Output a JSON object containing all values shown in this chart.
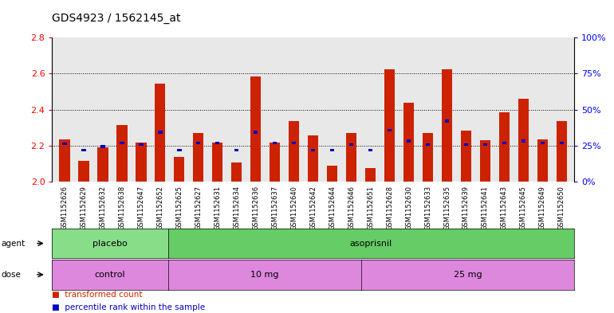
{
  "title": "GDS4923 / 1562145_at",
  "samples": [
    "GSM1152626",
    "GSM1152629",
    "GSM1152632",
    "GSM1152638",
    "GSM1152647",
    "GSM1152652",
    "GSM1152625",
    "GSM1152627",
    "GSM1152631",
    "GSM1152634",
    "GSM1152636",
    "GSM1152637",
    "GSM1152640",
    "GSM1152642",
    "GSM1152644",
    "GSM1152646",
    "GSM1152651",
    "GSM1152628",
    "GSM1152630",
    "GSM1152633",
    "GSM1152635",
    "GSM1152639",
    "GSM1152641",
    "GSM1152643",
    "GSM1152645",
    "GSM1152649",
    "GSM1152650"
  ],
  "red_values": [
    2.235,
    2.115,
    2.19,
    2.315,
    2.215,
    2.545,
    2.135,
    2.27,
    2.215,
    2.105,
    2.585,
    2.215,
    2.335,
    2.255,
    2.09,
    2.27,
    2.075,
    2.625,
    2.44,
    2.27,
    2.625,
    2.285,
    2.23,
    2.385,
    2.46,
    2.235,
    2.335
  ],
  "blue_values": [
    2.21,
    2.175,
    2.195,
    2.215,
    2.205,
    2.275,
    2.175,
    2.215,
    2.215,
    2.175,
    2.275,
    2.215,
    2.215,
    2.175,
    2.175,
    2.205,
    2.175,
    2.285,
    2.225,
    2.205,
    2.335,
    2.205,
    2.205,
    2.215,
    2.225,
    2.215,
    2.215
  ],
  "ylim": [
    2.0,
    2.8
  ],
  "yticks_left": [
    2.0,
    2.2,
    2.4,
    2.6,
    2.8
  ],
  "yticks_right": [
    0,
    25,
    50,
    75,
    100
  ],
  "bar_color": "#cc2200",
  "blue_color": "#0000bb",
  "bar_width": 0.55,
  "agent_groups": [
    {
      "label": "placebo",
      "start": 0,
      "end": 5,
      "color": "#88dd88"
    },
    {
      "label": "asoprisnil",
      "start": 6,
      "end": 26,
      "color": "#66cc66"
    }
  ],
  "dose_groups": [
    {
      "label": "control",
      "start": 0,
      "end": 5,
      "color": "#dd88dd"
    },
    {
      "label": "10 mg",
      "start": 6,
      "end": 15,
      "color": "#dd88dd"
    },
    {
      "label": "25 mg",
      "start": 16,
      "end": 26,
      "color": "#dd88dd"
    }
  ],
  "plot_bg": "#e8e8e8",
  "fig_bg": "#ffffff"
}
